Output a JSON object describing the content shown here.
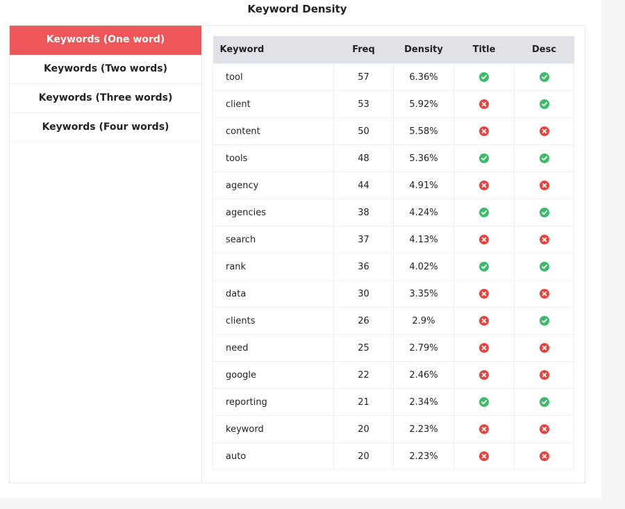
{
  "title": "Keyword Density",
  "tabs": [
    {
      "label": "Keywords (One word)",
      "active": true
    },
    {
      "label": "Keywords (Two words)",
      "active": false
    },
    {
      "label": "Keywords (Three words)",
      "active": false
    },
    {
      "label": "Keywords (Four words)",
      "active": false
    }
  ],
  "table": {
    "headers": {
      "keyword": "Keyword",
      "freq": "Freq",
      "density": "Density",
      "title": "Title",
      "desc": "Desc"
    },
    "rows": [
      {
        "keyword": "tool",
        "freq": "57",
        "density": "6.36%",
        "title": true,
        "desc": true
      },
      {
        "keyword": "client",
        "freq": "53",
        "density": "5.92%",
        "title": false,
        "desc": true
      },
      {
        "keyword": "content",
        "freq": "50",
        "density": "5.58%",
        "title": false,
        "desc": false
      },
      {
        "keyword": "tools",
        "freq": "48",
        "density": "5.36%",
        "title": true,
        "desc": true
      },
      {
        "keyword": "agency",
        "freq": "44",
        "density": "4.91%",
        "title": false,
        "desc": false
      },
      {
        "keyword": "agencies",
        "freq": "38",
        "density": "4.24%",
        "title": true,
        "desc": true
      },
      {
        "keyword": "search",
        "freq": "37",
        "density": "4.13%",
        "title": false,
        "desc": false
      },
      {
        "keyword": "rank",
        "freq": "36",
        "density": "4.02%",
        "title": true,
        "desc": true
      },
      {
        "keyword": "data",
        "freq": "30",
        "density": "3.35%",
        "title": false,
        "desc": false
      },
      {
        "keyword": "clients",
        "freq": "26",
        "density": "2.9%",
        "title": false,
        "desc": true
      },
      {
        "keyword": "need",
        "freq": "25",
        "density": "2.79%",
        "title": false,
        "desc": false
      },
      {
        "keyword": "google",
        "freq": "22",
        "density": "2.46%",
        "title": false,
        "desc": false
      },
      {
        "keyword": "reporting",
        "freq": "21",
        "density": "2.34%",
        "title": true,
        "desc": true
      },
      {
        "keyword": "keyword",
        "freq": "20",
        "density": "2.23%",
        "title": false,
        "desc": false
      },
      {
        "keyword": "auto",
        "freq": "20",
        "density": "2.23%",
        "title": false,
        "desc": false
      }
    ]
  },
  "colors": {
    "accent": "#ee5659",
    "check": "#3dba6a",
    "cross": "#e8443e",
    "header_bg": "#dfe3e8"
  },
  "icons": {
    "present": "check-circle-icon",
    "absent": "x-circle-icon"
  }
}
